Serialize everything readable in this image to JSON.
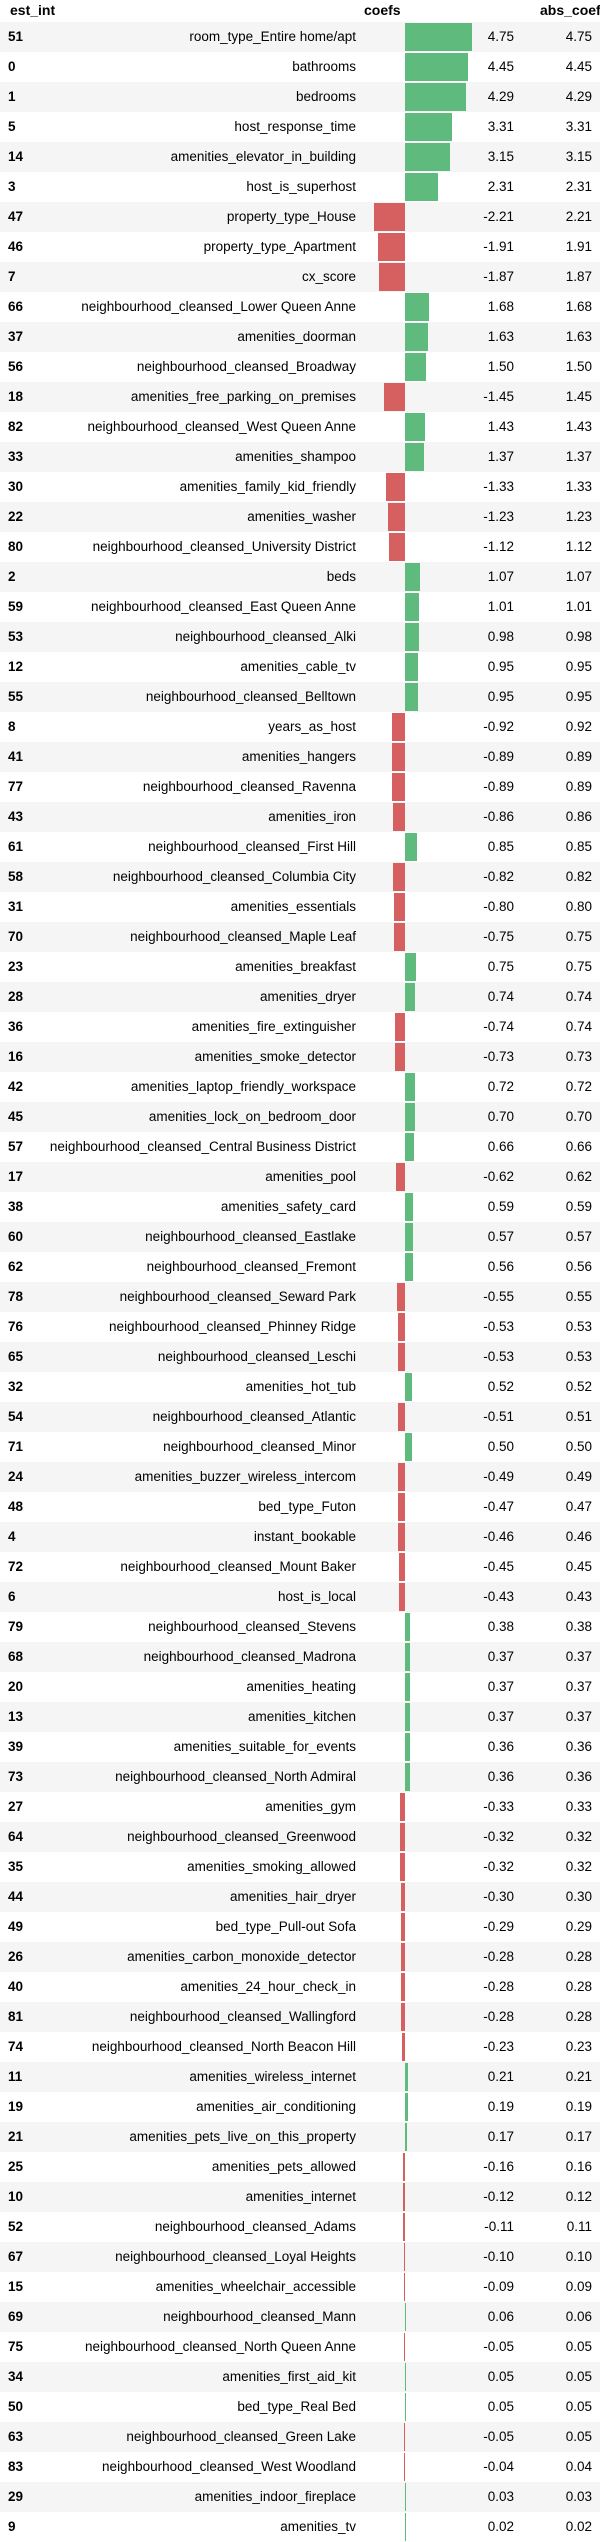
{
  "colors": {
    "positive": "#5fba7d",
    "negative": "#d65f5f",
    "zebra": "#f5f5f5"
  },
  "chart_data": {
    "type": "table",
    "columns": [
      "est_int",
      "coefs",
      "abs_coefs"
    ],
    "rows": [
      {
        "idx": "51",
        "name": "room_type_Entire home/apt",
        "coef": "4.75",
        "abs": "4.75"
      },
      {
        "idx": "0",
        "name": "bathrooms",
        "coef": "4.45",
        "abs": "4.45"
      },
      {
        "idx": "1",
        "name": "bedrooms",
        "coef": "4.29",
        "abs": "4.29"
      },
      {
        "idx": "5",
        "name": "host_response_time",
        "coef": "3.31",
        "abs": "3.31"
      },
      {
        "idx": "14",
        "name": "amenities_elevator_in_building",
        "coef": "3.15",
        "abs": "3.15"
      },
      {
        "idx": "3",
        "name": "host_is_superhost",
        "coef": "2.31",
        "abs": "2.31"
      },
      {
        "idx": "47",
        "name": "property_type_House",
        "coef": "-2.21",
        "abs": "2.21"
      },
      {
        "idx": "46",
        "name": "property_type_Apartment",
        "coef": "-1.91",
        "abs": "1.91"
      },
      {
        "idx": "7",
        "name": "cx_score",
        "coef": "-1.87",
        "abs": "1.87"
      },
      {
        "idx": "66",
        "name": "neighbourhood_cleansed_Lower Queen Anne",
        "coef": "1.68",
        "abs": "1.68"
      },
      {
        "idx": "37",
        "name": "amenities_doorman",
        "coef": "1.63",
        "abs": "1.63"
      },
      {
        "idx": "56",
        "name": "neighbourhood_cleansed_Broadway",
        "coef": "1.50",
        "abs": "1.50"
      },
      {
        "idx": "18",
        "name": "amenities_free_parking_on_premises",
        "coef": "-1.45",
        "abs": "1.45"
      },
      {
        "idx": "82",
        "name": "neighbourhood_cleansed_West Queen Anne",
        "coef": "1.43",
        "abs": "1.43"
      },
      {
        "idx": "33",
        "name": "amenities_shampoo",
        "coef": "1.37",
        "abs": "1.37"
      },
      {
        "idx": "30",
        "name": "amenities_family_kid_friendly",
        "coef": "-1.33",
        "abs": "1.33"
      },
      {
        "idx": "22",
        "name": "amenities_washer",
        "coef": "-1.23",
        "abs": "1.23"
      },
      {
        "idx": "80",
        "name": "neighbourhood_cleansed_University District",
        "coef": "-1.12",
        "abs": "1.12"
      },
      {
        "idx": "2",
        "name": "beds",
        "coef": "1.07",
        "abs": "1.07"
      },
      {
        "idx": "59",
        "name": "neighbourhood_cleansed_East Queen Anne",
        "coef": "1.01",
        "abs": "1.01"
      },
      {
        "idx": "53",
        "name": "neighbourhood_cleansed_Alki",
        "coef": "0.98",
        "abs": "0.98"
      },
      {
        "idx": "12",
        "name": "amenities_cable_tv",
        "coef": "0.95",
        "abs": "0.95"
      },
      {
        "idx": "55",
        "name": "neighbourhood_cleansed_Belltown",
        "coef": "0.95",
        "abs": "0.95"
      },
      {
        "idx": "8",
        "name": "years_as_host",
        "coef": "-0.92",
        "abs": "0.92"
      },
      {
        "idx": "41",
        "name": "amenities_hangers",
        "coef": "-0.89",
        "abs": "0.89"
      },
      {
        "idx": "77",
        "name": "neighbourhood_cleansed_Ravenna",
        "coef": "-0.89",
        "abs": "0.89"
      },
      {
        "idx": "43",
        "name": "amenities_iron",
        "coef": "-0.86",
        "abs": "0.86"
      },
      {
        "idx": "61",
        "name": "neighbourhood_cleansed_First Hill",
        "coef": "0.85",
        "abs": "0.85"
      },
      {
        "idx": "58",
        "name": "neighbourhood_cleansed_Columbia City",
        "coef": "-0.82",
        "abs": "0.82"
      },
      {
        "idx": "31",
        "name": "amenities_essentials",
        "coef": "-0.80",
        "abs": "0.80"
      },
      {
        "idx": "70",
        "name": "neighbourhood_cleansed_Maple Leaf",
        "coef": "-0.75",
        "abs": "0.75"
      },
      {
        "idx": "23",
        "name": "amenities_breakfast",
        "coef": "0.75",
        "abs": "0.75"
      },
      {
        "idx": "28",
        "name": "amenities_dryer",
        "coef": "0.74",
        "abs": "0.74"
      },
      {
        "idx": "36",
        "name": "amenities_fire_extinguisher",
        "coef": "-0.74",
        "abs": "0.74"
      },
      {
        "idx": "16",
        "name": "amenities_smoke_detector",
        "coef": "-0.73",
        "abs": "0.73"
      },
      {
        "idx": "42",
        "name": "amenities_laptop_friendly_workspace",
        "coef": "0.72",
        "abs": "0.72"
      },
      {
        "idx": "45",
        "name": "amenities_lock_on_bedroom_door",
        "coef": "0.70",
        "abs": "0.70"
      },
      {
        "idx": "57",
        "name": "neighbourhood_cleansed_Central Business District",
        "coef": "0.66",
        "abs": "0.66"
      },
      {
        "idx": "17",
        "name": "amenities_pool",
        "coef": "-0.62",
        "abs": "0.62"
      },
      {
        "idx": "38",
        "name": "amenities_safety_card",
        "coef": "0.59",
        "abs": "0.59"
      },
      {
        "idx": "60",
        "name": "neighbourhood_cleansed_Eastlake",
        "coef": "0.57",
        "abs": "0.57"
      },
      {
        "idx": "62",
        "name": "neighbourhood_cleansed_Fremont",
        "coef": "0.56",
        "abs": "0.56"
      },
      {
        "idx": "78",
        "name": "neighbourhood_cleansed_Seward Park",
        "coef": "-0.55",
        "abs": "0.55"
      },
      {
        "idx": "76",
        "name": "neighbourhood_cleansed_Phinney Ridge",
        "coef": "-0.53",
        "abs": "0.53"
      },
      {
        "idx": "65",
        "name": "neighbourhood_cleansed_Leschi",
        "coef": "-0.53",
        "abs": "0.53"
      },
      {
        "idx": "32",
        "name": "amenities_hot_tub",
        "coef": "0.52",
        "abs": "0.52"
      },
      {
        "idx": "54",
        "name": "neighbourhood_cleansed_Atlantic",
        "coef": "-0.51",
        "abs": "0.51"
      },
      {
        "idx": "71",
        "name": "neighbourhood_cleansed_Minor",
        "coef": "0.50",
        "abs": "0.50"
      },
      {
        "idx": "24",
        "name": "amenities_buzzer_wireless_intercom",
        "coef": "-0.49",
        "abs": "0.49"
      },
      {
        "idx": "48",
        "name": "bed_type_Futon",
        "coef": "-0.47",
        "abs": "0.47"
      },
      {
        "idx": "4",
        "name": "instant_bookable",
        "coef": "-0.46",
        "abs": "0.46"
      },
      {
        "idx": "72",
        "name": "neighbourhood_cleansed_Mount Baker",
        "coef": "-0.45",
        "abs": "0.45"
      },
      {
        "idx": "6",
        "name": "host_is_local",
        "coef": "-0.43",
        "abs": "0.43"
      },
      {
        "idx": "79",
        "name": "neighbourhood_cleansed_Stevens",
        "coef": "0.38",
        "abs": "0.38"
      },
      {
        "idx": "68",
        "name": "neighbourhood_cleansed_Madrona",
        "coef": "0.37",
        "abs": "0.37"
      },
      {
        "idx": "20",
        "name": "amenities_heating",
        "coef": "0.37",
        "abs": "0.37"
      },
      {
        "idx": "13",
        "name": "amenities_kitchen",
        "coef": "0.37",
        "abs": "0.37"
      },
      {
        "idx": "39",
        "name": "amenities_suitable_for_events",
        "coef": "0.36",
        "abs": "0.36"
      },
      {
        "idx": "73",
        "name": "neighbourhood_cleansed_North Admiral",
        "coef": "0.36",
        "abs": "0.36"
      },
      {
        "idx": "27",
        "name": "amenities_gym",
        "coef": "-0.33",
        "abs": "0.33"
      },
      {
        "idx": "64",
        "name": "neighbourhood_cleansed_Greenwood",
        "coef": "-0.32",
        "abs": "0.32"
      },
      {
        "idx": "35",
        "name": "amenities_smoking_allowed",
        "coef": "-0.32",
        "abs": "0.32"
      },
      {
        "idx": "44",
        "name": "amenities_hair_dryer",
        "coef": "-0.30",
        "abs": "0.30"
      },
      {
        "idx": "49",
        "name": "bed_type_Pull-out Sofa",
        "coef": "-0.29",
        "abs": "0.29"
      },
      {
        "idx": "26",
        "name": "amenities_carbon_monoxide_detector",
        "coef": "-0.28",
        "abs": "0.28"
      },
      {
        "idx": "40",
        "name": "amenities_24_hour_check_in",
        "coef": "-0.28",
        "abs": "0.28"
      },
      {
        "idx": "81",
        "name": "neighbourhood_cleansed_Wallingford",
        "coef": "-0.28",
        "abs": "0.28"
      },
      {
        "idx": "74",
        "name": "neighbourhood_cleansed_North Beacon Hill",
        "coef": "-0.23",
        "abs": "0.23"
      },
      {
        "idx": "11",
        "name": "amenities_wireless_internet",
        "coef": "0.21",
        "abs": "0.21"
      },
      {
        "idx": "19",
        "name": "amenities_air_conditioning",
        "coef": "0.19",
        "abs": "0.19"
      },
      {
        "idx": "21",
        "name": "amenities_pets_live_on_this_property",
        "coef": "0.17",
        "abs": "0.17"
      },
      {
        "idx": "25",
        "name": "amenities_pets_allowed",
        "coef": "-0.16",
        "abs": "0.16"
      },
      {
        "idx": "10",
        "name": "amenities_internet",
        "coef": "-0.12",
        "abs": "0.12"
      },
      {
        "idx": "52",
        "name": "neighbourhood_cleansed_Adams",
        "coef": "-0.11",
        "abs": "0.11"
      },
      {
        "idx": "67",
        "name": "neighbourhood_cleansed_Loyal Heights",
        "coef": "-0.10",
        "abs": "0.10"
      },
      {
        "idx": "15",
        "name": "amenities_wheelchair_accessible",
        "coef": "-0.09",
        "abs": "0.09"
      },
      {
        "idx": "69",
        "name": "neighbourhood_cleansed_Mann",
        "coef": "0.06",
        "abs": "0.06"
      },
      {
        "idx": "75",
        "name": "neighbourhood_cleansed_North Queen Anne",
        "coef": "-0.05",
        "abs": "0.05"
      },
      {
        "idx": "34",
        "name": "amenities_first_aid_kit",
        "coef": "0.05",
        "abs": "0.05"
      },
      {
        "idx": "50",
        "name": "bed_type_Real Bed",
        "coef": "0.05",
        "abs": "0.05"
      },
      {
        "idx": "63",
        "name": "neighbourhood_cleansed_Green Lake",
        "coef": "-0.05",
        "abs": "0.05"
      },
      {
        "idx": "83",
        "name": "neighbourhood_cleansed_West Woodland",
        "coef": "-0.04",
        "abs": "0.04"
      },
      {
        "idx": "29",
        "name": "amenities_indoor_fireplace",
        "coef": "0.03",
        "abs": "0.03"
      },
      {
        "idx": "9",
        "name": "amenities_tv",
        "coef": "0.02",
        "abs": "0.02"
      }
    ]
  }
}
